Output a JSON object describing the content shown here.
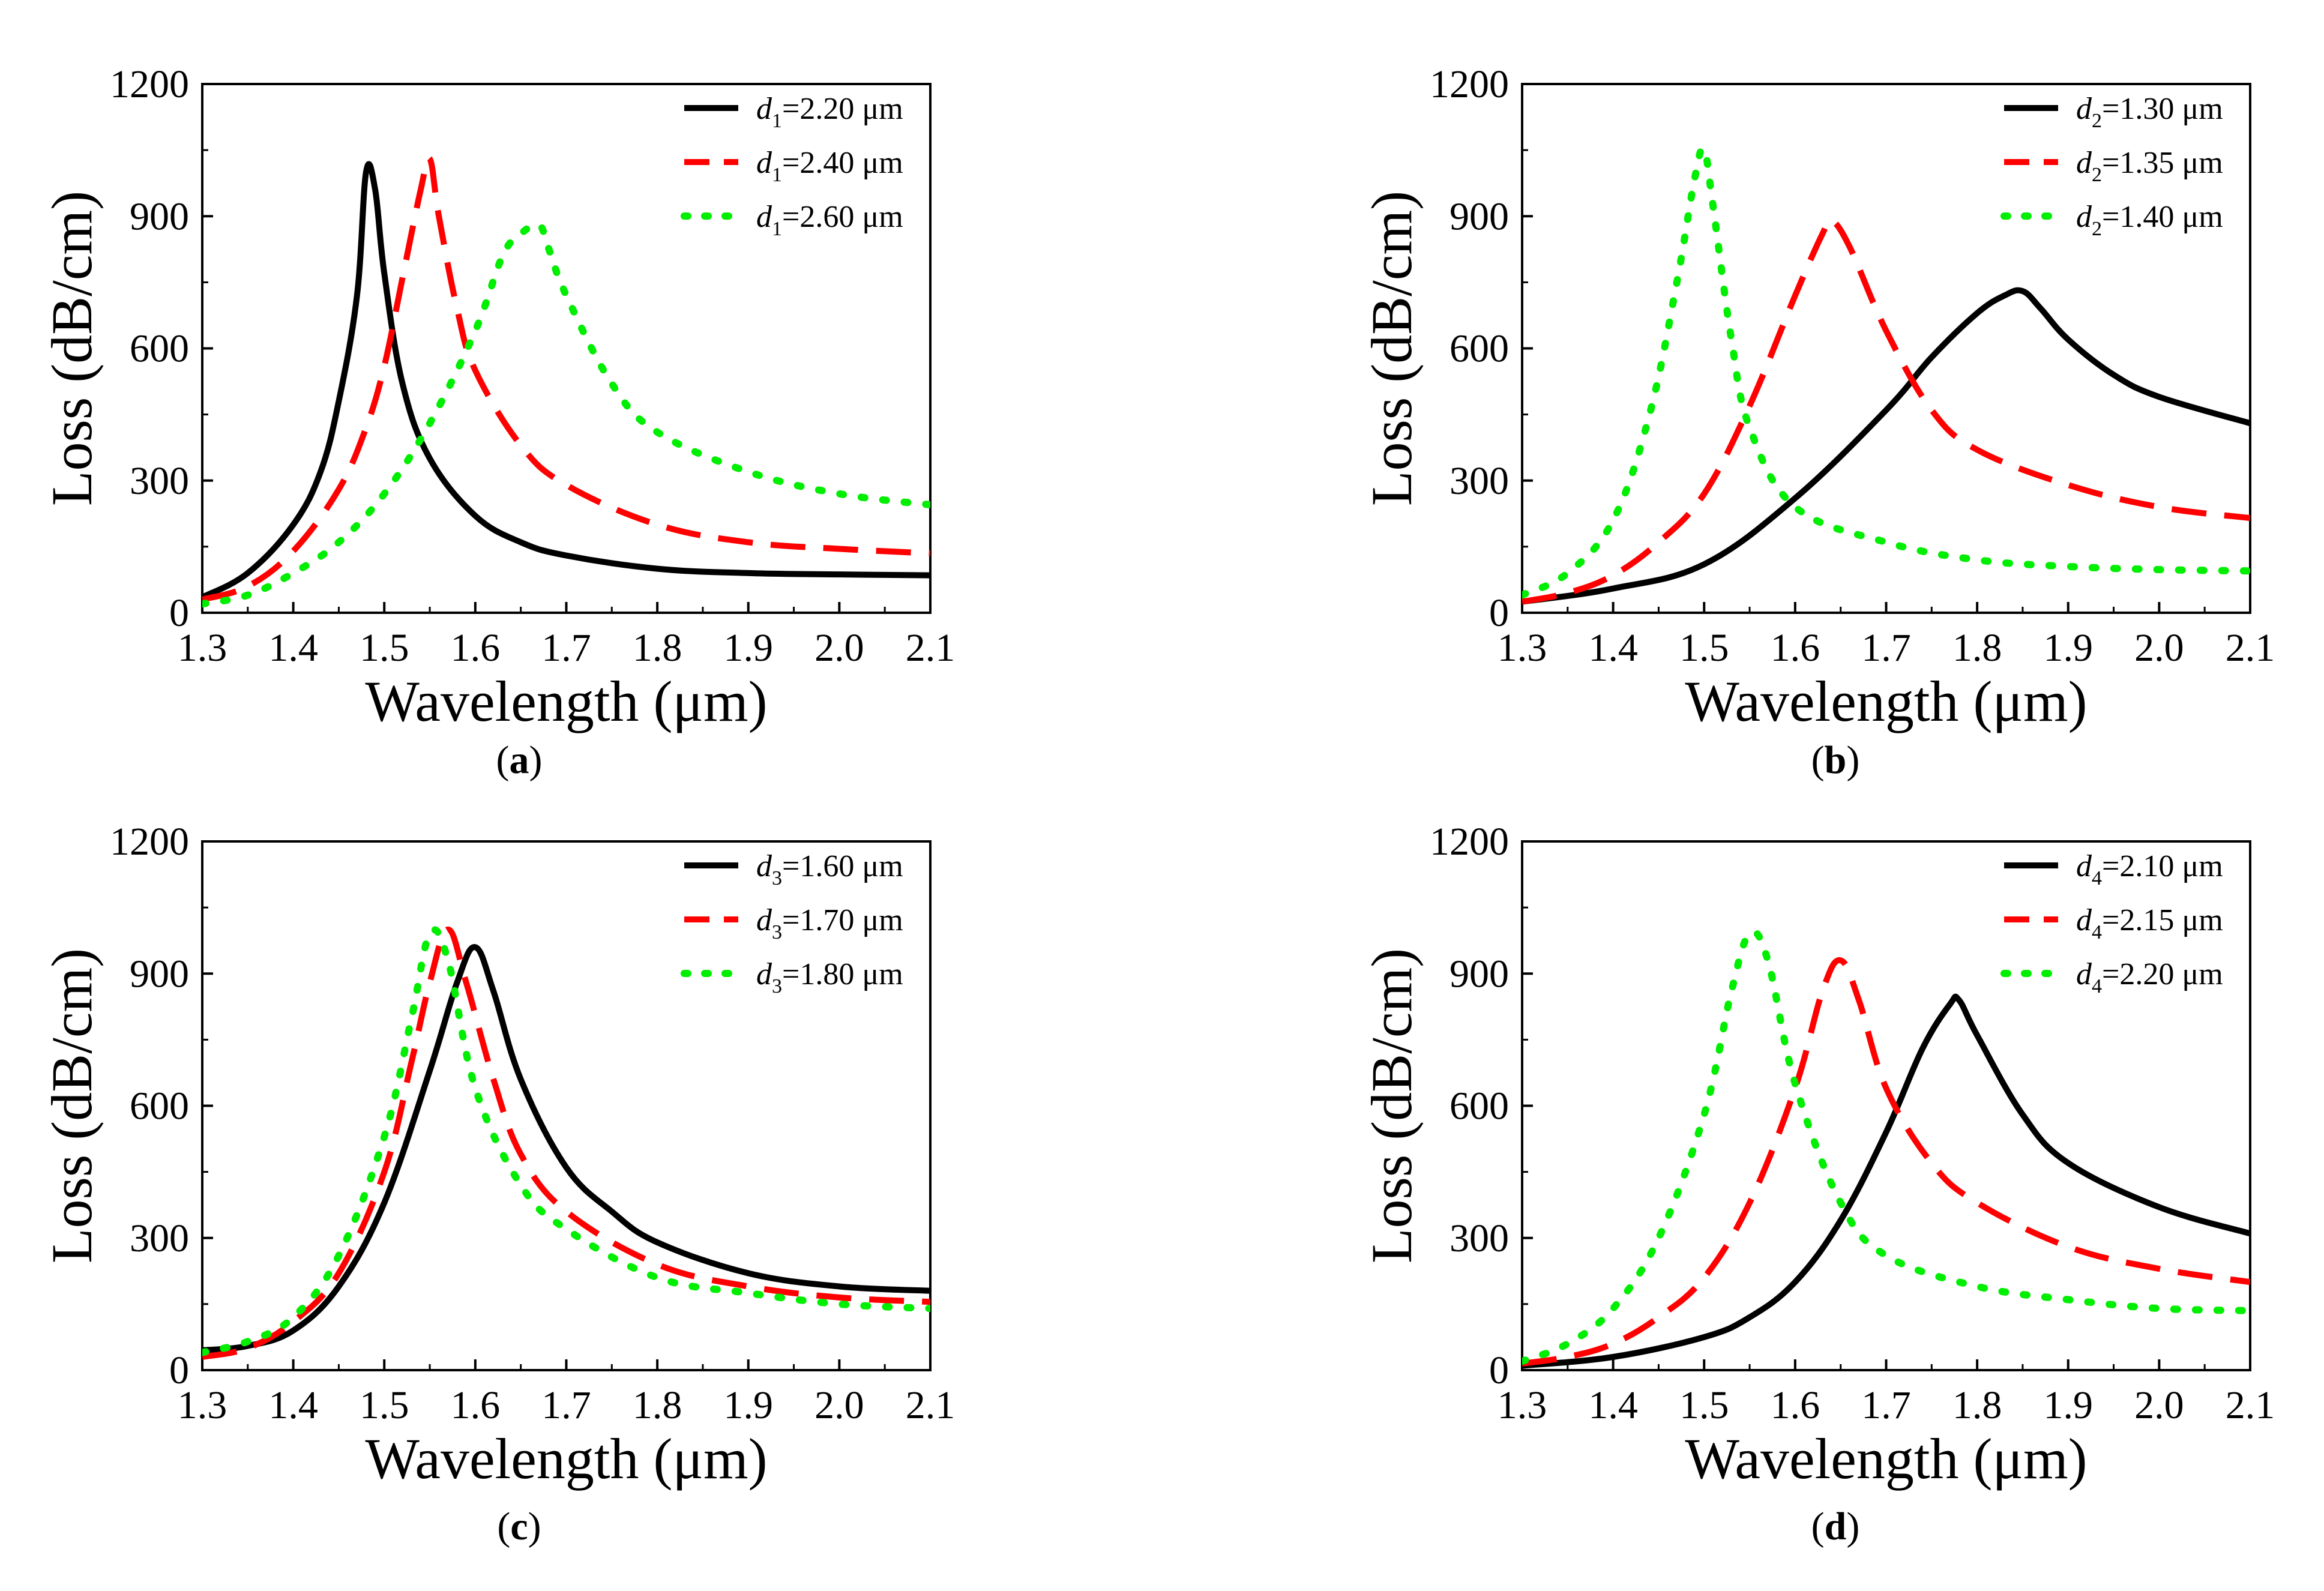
{
  "chart_data": [
    {
      "type": "line",
      "panel_label": "a",
      "xlabel": "Wavelength (μm)",
      "ylabel": "Loss (dB/cm)",
      "xlim": [
        1.3,
        2.1
      ],
      "ylim": [
        0,
        1200
      ],
      "xticks": [
        "1.3",
        "1.4",
        "1.5",
        "1.6",
        "1.7",
        "1.8",
        "1.9",
        "2.0",
        "2.1"
      ],
      "yticks": [
        "0",
        "300",
        "600",
        "900",
        "1200"
      ],
      "legend_position": "top-right",
      "series": [
        {
          "name": "d1=2.20 μm",
          "var": "d",
          "sub": "1",
          "text": "=2.20 μm",
          "color": "#000000",
          "style": "solid",
          "x": [
            1.3,
            1.35,
            1.4,
            1.43,
            1.45,
            1.47,
            1.48,
            1.49,
            1.5,
            1.52,
            1.55,
            1.6,
            1.65,
            1.7,
            1.8,
            1.9,
            2.0,
            2.1
          ],
          "y": [
            35,
            90,
            200,
            320,
            480,
            720,
            1000,
            960,
            770,
            520,
            350,
            220,
            160,
            130,
            100,
            90,
            87,
            85
          ]
        },
        {
          "name": "d1=2.40 μm",
          "var": "d",
          "sub": "1",
          "text": "=2.40 μm",
          "color": "#ff0000",
          "style": "dashed",
          "x": [
            1.3,
            1.35,
            1.4,
            1.45,
            1.48,
            1.5,
            1.52,
            1.54,
            1.55,
            1.56,
            1.58,
            1.6,
            1.65,
            1.7,
            1.8,
            1.9,
            2.0,
            2.1
          ],
          "y": [
            30,
            60,
            140,
            280,
            420,
            560,
            760,
            960,
            1030,
            900,
            690,
            550,
            380,
            290,
            200,
            160,
            145,
            135
          ]
        },
        {
          "name": "d1=2.60 μm",
          "var": "d",
          "sub": "1",
          "text": "=2.60 μm",
          "color": "#00ee00",
          "style": "dotted",
          "x": [
            1.3,
            1.35,
            1.4,
            1.45,
            1.5,
            1.55,
            1.6,
            1.63,
            1.65,
            1.67,
            1.68,
            1.7,
            1.75,
            1.8,
            1.9,
            2.0,
            2.1
          ],
          "y": [
            20,
            40,
            90,
            160,
            270,
            430,
            640,
            810,
            860,
            880,
            830,
            720,
            520,
            410,
            320,
            270,
            245
          ]
        }
      ]
    },
    {
      "type": "line",
      "panel_label": "b",
      "xlabel": "Wavelength (μm)",
      "ylabel": "Loss (dB/cm)",
      "xlim": [
        1.3,
        2.1
      ],
      "ylim": [
        0,
        1200
      ],
      "xticks": [
        "1.3",
        "1.4",
        "1.5",
        "1.6",
        "1.7",
        "1.8",
        "1.9",
        "2.0",
        "2.1"
      ],
      "yticks": [
        "0",
        "300",
        "600",
        "900",
        "1200"
      ],
      "legend_position": "top-right",
      "series": [
        {
          "name": "d2=1.30 μm",
          "var": "d",
          "sub": "2",
          "text": "=1.30 μm",
          "color": "#000000",
          "style": "solid",
          "x": [
            1.3,
            1.4,
            1.5,
            1.6,
            1.7,
            1.75,
            1.8,
            1.83,
            1.85,
            1.87,
            1.9,
            1.95,
            2.0,
            2.1
          ],
          "y": [
            25,
            55,
            110,
            260,
            460,
            580,
            680,
            720,
            730,
            690,
            620,
            540,
            490,
            430
          ]
        },
        {
          "name": "d2=1.35 μm",
          "var": "d",
          "sub": "2",
          "text": "=1.35 μm",
          "color": "#ff0000",
          "style": "dashed",
          "x": [
            1.3,
            1.35,
            1.4,
            1.45,
            1.5,
            1.55,
            1.6,
            1.63,
            1.64,
            1.66,
            1.7,
            1.75,
            1.8,
            1.9,
            2.0,
            2.1
          ],
          "y": [
            25,
            45,
            85,
            160,
            270,
            470,
            720,
            860,
            890,
            830,
            640,
            460,
            370,
            290,
            240,
            215
          ]
        },
        {
          "name": "d2=1.40 μm",
          "var": "d",
          "sub": "2",
          "text": "=1.40 μm",
          "color": "#00ee00",
          "style": "dotted",
          "x": [
            1.3,
            1.35,
            1.4,
            1.44,
            1.47,
            1.49,
            1.5,
            1.51,
            1.53,
            1.55,
            1.6,
            1.7,
            1.8,
            1.9,
            2.0,
            2.1
          ],
          "y": [
            40,
            90,
            210,
            450,
            750,
            990,
            1050,
            920,
            620,
            420,
            240,
            160,
            120,
            105,
            98,
            95
          ]
        }
      ]
    },
    {
      "type": "line",
      "panel_label": "c",
      "xlabel": "Wavelength (μm)",
      "ylabel": "Loss (dB/cm)",
      "xlim": [
        1.3,
        2.1
      ],
      "ylim": [
        0,
        1200
      ],
      "xticks": [
        "1.3",
        "1.4",
        "1.5",
        "1.6",
        "1.7",
        "1.8",
        "1.9",
        "2.0",
        "2.1"
      ],
      "yticks": [
        "0",
        "300",
        "600",
        "900",
        "1200"
      ],
      "legend_position": "top-right",
      "series": [
        {
          "name": "d3=1.60 μm",
          "var": "d",
          "sub": "3",
          "text": "=1.60 μm",
          "color": "#000000",
          "style": "solid",
          "x": [
            1.3,
            1.35,
            1.4,
            1.45,
            1.5,
            1.55,
            1.58,
            1.6,
            1.62,
            1.65,
            1.7,
            1.75,
            1.8,
            1.9,
            2.0,
            2.1
          ],
          "y": [
            45,
            55,
            90,
            190,
            380,
            680,
            880,
            960,
            860,
            660,
            460,
            360,
            290,
            220,
            190,
            180
          ]
        },
        {
          "name": "d3=1.70 μm",
          "var": "d",
          "sub": "3",
          "text": "=1.70 μm",
          "color": "#ff0000",
          "style": "dashed",
          "x": [
            1.3,
            1.35,
            1.4,
            1.45,
            1.5,
            1.53,
            1.55,
            1.57,
            1.59,
            1.62,
            1.65,
            1.7,
            1.8,
            1.9,
            2.0,
            2.1
          ],
          "y": [
            30,
            50,
            110,
            220,
            450,
            700,
            880,
            1000,
            880,
            660,
            490,
            360,
            240,
            190,
            165,
            155
          ]
        },
        {
          "name": "d3=1.80 μm",
          "var": "d",
          "sub": "3",
          "text": "=1.80 μm",
          "color": "#00ee00",
          "style": "dotted",
          "x": [
            1.3,
            1.35,
            1.4,
            1.45,
            1.5,
            1.53,
            1.55,
            1.57,
            1.6,
            1.65,
            1.7,
            1.8,
            1.9,
            2.0,
            2.1
          ],
          "y": [
            40,
            65,
            120,
            260,
            530,
            800,
            990,
            930,
            640,
            420,
            320,
            210,
            175,
            150,
            140
          ]
        }
      ]
    },
    {
      "type": "line",
      "panel_label": "d",
      "xlabel": "Wavelength (μm)",
      "ylabel": "Loss (dB/cm)",
      "xlim": [
        1.3,
        2.1
      ],
      "ylim": [
        0,
        1200
      ],
      "xticks": [
        "1.3",
        "1.4",
        "1.5",
        "1.6",
        "1.7",
        "1.8",
        "1.9",
        "2.0",
        "2.1"
      ],
      "yticks": [
        "0",
        "300",
        "600",
        "900",
        "1200"
      ],
      "legend_position": "top-right",
      "series": [
        {
          "name": "d4=2.10 μm",
          "var": "d",
          "sub": "4",
          "text": "=2.10 μm",
          "color": "#000000",
          "style": "solid",
          "x": [
            1.3,
            1.4,
            1.5,
            1.55,
            1.6,
            1.65,
            1.7,
            1.74,
            1.77,
            1.78,
            1.8,
            1.85,
            1.9,
            2.0,
            2.1
          ],
          "y": [
            10,
            30,
            75,
            120,
            200,
            340,
            540,
            730,
            830,
            840,
            760,
            580,
            470,
            370,
            310
          ]
        },
        {
          "name": "d4=2.15 μm",
          "var": "d",
          "sub": "4",
          "text": "=2.15 μm",
          "color": "#ff0000",
          "style": "dashed",
          "x": [
            1.3,
            1.35,
            1.4,
            1.45,
            1.5,
            1.55,
            1.6,
            1.63,
            1.65,
            1.67,
            1.7,
            1.75,
            1.8,
            1.9,
            2.0,
            2.1
          ],
          "y": [
            15,
            30,
            60,
            120,
            210,
            380,
            640,
            860,
            930,
            840,
            640,
            470,
            380,
            280,
            230,
            200
          ]
        },
        {
          "name": "d4=2.20 μm",
          "var": "d",
          "sub": "4",
          "text": "=2.20 μm",
          "color": "#00ee00",
          "style": "dotted",
          "x": [
            1.3,
            1.35,
            1.4,
            1.45,
            1.5,
            1.53,
            1.55,
            1.57,
            1.6,
            1.65,
            1.7,
            1.8,
            1.9,
            2.0,
            2.1
          ],
          "y": [
            20,
            60,
            140,
            300,
            580,
            860,
            990,
            930,
            650,
            380,
            260,
            190,
            160,
            140,
            135
          ]
        }
      ]
    }
  ]
}
